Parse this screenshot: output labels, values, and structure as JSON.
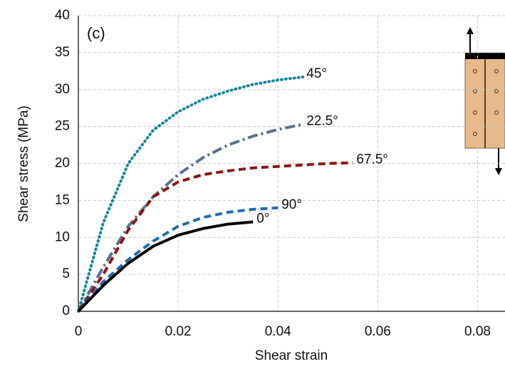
{
  "chart_data": {
    "type": "line",
    "annotation": "(c)",
    "x_label": "Shear strain",
    "y_label": "Shear stress (MPa)",
    "x": [
      0,
      0.005,
      0.01,
      0.015,
      0.02,
      0.025,
      0.03,
      0.035,
      0.04,
      0.045,
      0.05,
      0.055
    ],
    "series": [
      {
        "name": "45°",
        "color": "#16879a",
        "dash": "dotted",
        "values": [
          0,
          12,
          20,
          24.5,
          27,
          28.7,
          29.8,
          30.7,
          31.3,
          31.7,
          null,
          null
        ]
      },
      {
        "name": "22.5°",
        "color": "#5b7191",
        "dash": "dashdot",
        "values": [
          0,
          6,
          11.5,
          15.5,
          18.5,
          20.8,
          22.5,
          23.7,
          24.6,
          25.3,
          null,
          null
        ]
      },
      {
        "name": "67.5°",
        "color": "#8e1414",
        "dash": "dashed",
        "values": [
          0,
          5,
          11,
          15.5,
          17.5,
          18.5,
          19,
          19.4,
          19.6,
          19.8,
          20,
          20.1
        ]
      },
      {
        "name": "90°",
        "color": "#1f6db0",
        "dash": "dashed",
        "values": [
          0,
          4,
          7,
          9.5,
          11.5,
          12.7,
          13.4,
          13.8,
          14,
          null,
          null,
          null
        ]
      },
      {
        "name": "0°",
        "color": "#000000",
        "dash": "solid",
        "values": [
          0,
          3.5,
          6.5,
          8.8,
          10.3,
          11.2,
          11.8,
          12.1,
          null,
          null,
          null,
          null
        ]
      }
    ],
    "xlim": [
      0,
      0.0855
    ],
    "xticks": [
      0,
      0.02,
      0.04,
      0.06,
      0.08
    ],
    "ylim": [
      0,
      40
    ],
    "yticks": [
      0,
      5,
      10,
      15,
      20,
      25,
      30,
      35,
      40
    ],
    "grid": true
  }
}
